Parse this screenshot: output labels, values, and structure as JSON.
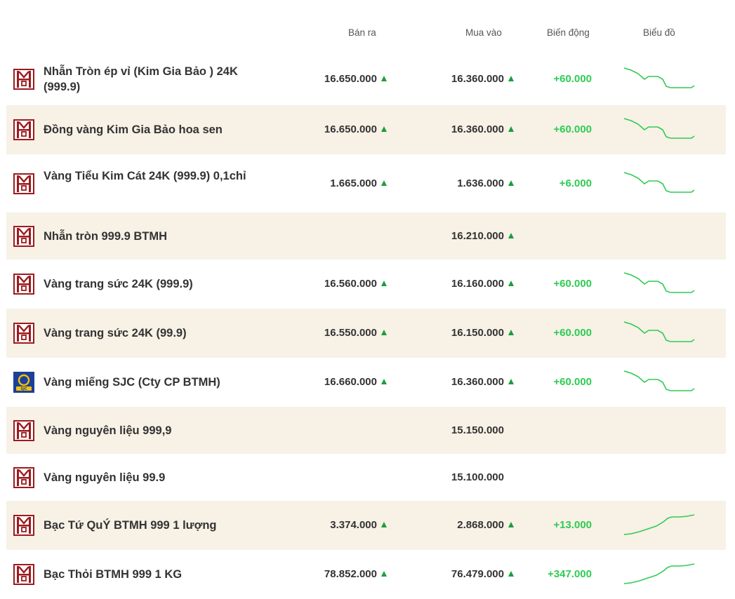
{
  "columns": {
    "sell": "Bán ra",
    "buy": "Mua vào",
    "change": "Biến động",
    "chart": "Biểu đồ"
  },
  "colors": {
    "brand": "#9b1b1f",
    "up": "#2ecc52",
    "arrow": "#1a9e3a",
    "alt_row": "#f7f1e6"
  },
  "rows": [
    {
      "name": "Nhẫn Tròn ép vỉ (Kim Gia Bảo ) 24K (999.9)",
      "logo": "btmh-logo",
      "sell": "16.650.000",
      "buy": "16.360.000",
      "change": "+60.000",
      "sell_up": true,
      "buy_up": true,
      "trend": "down"
    },
    {
      "name": "Đồng vàng Kim Gia Bảo hoa sen",
      "logo": "btmh-logo",
      "sell": "16.650.000",
      "buy": "16.360.000",
      "change": "+60.000",
      "sell_up": true,
      "buy_up": true,
      "trend": "down"
    },
    {
      "name": "Vàng Tiểu Kim Cát 24K (999.9) 0,1chỉ",
      "logo": "btmh-logo",
      "sell": "1.665.000",
      "buy": "1.636.000",
      "change": "+6.000",
      "sell_up": true,
      "buy_up": true,
      "trend": "down"
    },
    {
      "name": "Nhẫn tròn 999.9 BTMH",
      "logo": "btmh-logo",
      "sell": "",
      "buy": "16.210.000",
      "change": "",
      "sell_up": false,
      "buy_up": true,
      "trend": "none"
    },
    {
      "name": "Vàng trang sức 24K (999.9)",
      "logo": "btmh-logo",
      "sell": "16.560.000",
      "buy": "16.160.000",
      "change": "+60.000",
      "sell_up": true,
      "buy_up": true,
      "trend": "down"
    },
    {
      "name": "Vàng trang sức 24K (99.9)",
      "logo": "btmh-logo",
      "sell": "16.550.000",
      "buy": "16.150.000",
      "change": "+60.000",
      "sell_up": true,
      "buy_up": true,
      "trend": "down"
    },
    {
      "name": "Vàng miếng SJC (Cty CP BTMH)",
      "logo": "sjc-logo",
      "sell": "16.660.000",
      "buy": "16.360.000",
      "change": "+60.000",
      "sell_up": true,
      "buy_up": true,
      "trend": "down"
    },
    {
      "name": "Vàng nguyên liệu 999,9",
      "logo": "btmh-logo",
      "sell": "",
      "buy": "15.150.000",
      "change": "",
      "sell_up": false,
      "buy_up": false,
      "trend": "none"
    },
    {
      "name": "Vàng nguyên liệu 99.9",
      "logo": "btmh-logo",
      "sell": "",
      "buy": "15.100.000",
      "change": "",
      "sell_up": false,
      "buy_up": false,
      "trend": "none"
    },
    {
      "name": "Bạc Tứ QuÝ BTMH 999 1 lượng",
      "logo": "btmh-logo",
      "sell": "3.374.000",
      "buy": "2.868.000",
      "change": "+13.000",
      "sell_up": true,
      "buy_up": true,
      "trend": "up"
    },
    {
      "name": "Bạc Thỏi BTMH 999 1 KG",
      "logo": "btmh-logo",
      "sell": "78.852.000",
      "buy": "76.479.000",
      "change": "+347.000",
      "sell_up": true,
      "buy_up": true,
      "trend": "up"
    }
  ]
}
